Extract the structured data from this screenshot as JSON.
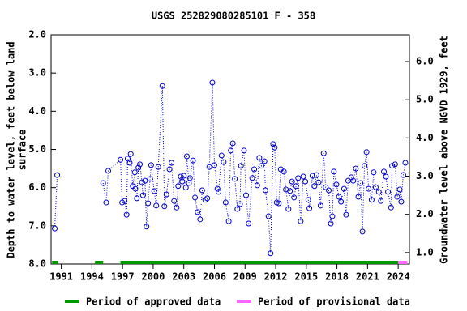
{
  "chart_data": {
    "type": "line",
    "title": "USGS 252829080285101 F  - 358",
    "y_label": [
      "Depth to water level, feet below land",
      "surface"
    ],
    "y2_label": "Groundwater level above NGVD 1929, feet",
    "xlim": [
      1990,
      2025.1
    ],
    "xticks": [
      1991,
      1994,
      1997,
      2000,
      2003,
      2006,
      2009,
      2012,
      2015,
      2018,
      2021,
      2024
    ],
    "ylim": [
      2,
      8
    ],
    "yticks": [
      {
        "value": 2,
        "label": "2.0"
      },
      {
        "value": 3,
        "label": "3.0"
      },
      {
        "value": 4,
        "label": "4.0"
      },
      {
        "value": 5,
        "label": "5.0"
      },
      {
        "value": 6,
        "label": "6.0"
      },
      {
        "value": 7,
        "label": "7.0"
      },
      {
        "value": 8,
        "label": "8.0"
      }
    ],
    "y2lim": [
      6.7,
      0.7
    ],
    "y2ticks": [
      {
        "value": 1,
        "label": "1.0"
      },
      {
        "value": 2,
        "label": "2.0"
      },
      {
        "value": 3,
        "label": "3.0"
      },
      {
        "value": 4,
        "label": "4.0"
      },
      {
        "value": 5,
        "label": "5.0"
      },
      {
        "value": 6,
        "label": "6.0"
      }
    ],
    "series": [
      {
        "color": "#0000cc",
        "x": [
          1990.36,
          1990.6,
          null,
          1995.1,
          1995.4,
          1995.6,
          1996.8,
          1996.96,
          1997.2,
          1997.4,
          1997.5,
          1997.7,
          1997.8,
          1998.0,
          1998.2,
          1998.25,
          1998.4,
          1998.55,
          1998.7,
          1998.9,
          1999.0,
          1999.2,
          1999.35,
          1999.5,
          1999.7,
          1999.8,
          2000.1,
          2000.3,
          2000.5,
          2000.9,
          2001.1,
          2001.3,
          2001.6,
          2001.8,
          2002.05,
          2002.3,
          2002.45,
          2002.7,
          2002.85,
          2003.0,
          2003.2,
          2003.3,
          2003.5,
          2003.6,
          2003.9,
          2004.1,
          2004.35,
          2004.6,
          2004.8,
          2005.1,
          2005.3,
          2005.5,
          2005.8,
          2006.0,
          2006.3,
          2006.4,
          2006.7,
          2006.9,
          2007.1,
          2007.4,
          2007.6,
          2007.8,
          2008.0,
          2008.25,
          2008.5,
          2008.6,
          2008.9,
          2009.1,
          2009.35,
          2009.7,
          2009.9,
          2010.2,
          2010.4,
          2010.6,
          2010.9,
          2011.0,
          2011.3,
          2011.5,
          2011.75,
          2011.9,
          2012.1,
          2012.3,
          2012.5,
          2012.8,
          2013.0,
          2013.25,
          2013.4,
          2013.6,
          2013.8,
          2014.0,
          2014.2,
          2014.45,
          2014.7,
          2014.9,
          2015.2,
          2015.3,
          2015.6,
          2015.8,
          2016.0,
          2016.2,
          2016.4,
          2016.7,
          2016.9,
          2017.2,
          2017.4,
          2017.55,
          2017.7,
          2017.95,
          2018.2,
          2018.4,
          2018.7,
          2018.9,
          2019.1,
          2019.4,
          2019.6,
          2019.85,
          2020.1,
          2020.3,
          2020.5,
          2020.7,
          2020.9,
          2021.1,
          2021.4,
          2021.6,
          2021.8,
          2022.1,
          2022.3,
          2022.6,
          2022.8,
          2023.0,
          2023.3,
          2023.4,
          2023.7,
          2023.9,
          2024.15,
          2024.3,
          2024.5,
          2024.7
        ],
        "values": [
          7.07,
          5.67,
          null,
          5.88,
          6.39,
          5.56,
          5.27,
          6.39,
          6.35,
          6.71,
          5.24,
          5.35,
          5.12,
          5.96,
          5.6,
          6.03,
          6.28,
          5.48,
          5.39,
          5.86,
          6.2,
          5.82,
          7.02,
          6.41,
          5.77,
          5.41,
          6.09,
          6.47,
          5.46,
          3.34,
          6.49,
          6.18,
          5.52,
          5.35,
          6.35,
          6.52,
          5.96,
          5.71,
          5.84,
          5.69,
          6.0,
          5.18,
          5.88,
          5.75,
          5.29,
          6.26,
          6.64,
          6.83,
          6.07,
          6.32,
          6.28,
          5.46,
          3.25,
          5.41,
          6.03,
          6.11,
          5.16,
          5.33,
          6.39,
          6.88,
          5.03,
          4.84,
          5.77,
          6.56,
          6.43,
          5.43,
          5.03,
          6.2,
          6.94,
          5.75,
          5.52,
          5.94,
          5.22,
          5.43,
          5.31,
          6.07,
          6.75,
          7.72,
          4.86,
          4.95,
          6.39,
          6.41,
          5.52,
          5.58,
          6.05,
          6.56,
          6.09,
          5.84,
          6.26,
          5.96,
          5.75,
          6.88,
          5.71,
          5.84,
          6.32,
          6.54,
          5.69,
          5.96,
          5.67,
          5.86,
          6.47,
          5.1,
          5.99,
          6.07,
          6.94,
          6.75,
          5.58,
          5.92,
          6.24,
          6.37,
          6.03,
          6.71,
          5.82,
          5.73,
          5.82,
          5.5,
          6.24,
          5.88,
          7.15,
          5.43,
          5.07,
          6.03,
          6.32,
          5.6,
          5.99,
          6.11,
          6.35,
          5.58,
          5.71,
          6.11,
          6.52,
          5.43,
          5.39,
          6.24,
          6.05,
          6.37,
          5.67,
          5.35
        ]
      }
    ],
    "periods": [
      {
        "name": "Period of approved data",
        "color": "#009900",
        "ranges": [
          [
            1990.1,
            1990.7
          ],
          [
            1994.3,
            1995.1
          ],
          [
            1996.8,
            2024.0
          ]
        ]
      },
      {
        "name": "Period of provisional data",
        "color": "#ff66ff",
        "ranges": [
          [
            2024.0,
            2024.9
          ]
        ]
      }
    ]
  }
}
